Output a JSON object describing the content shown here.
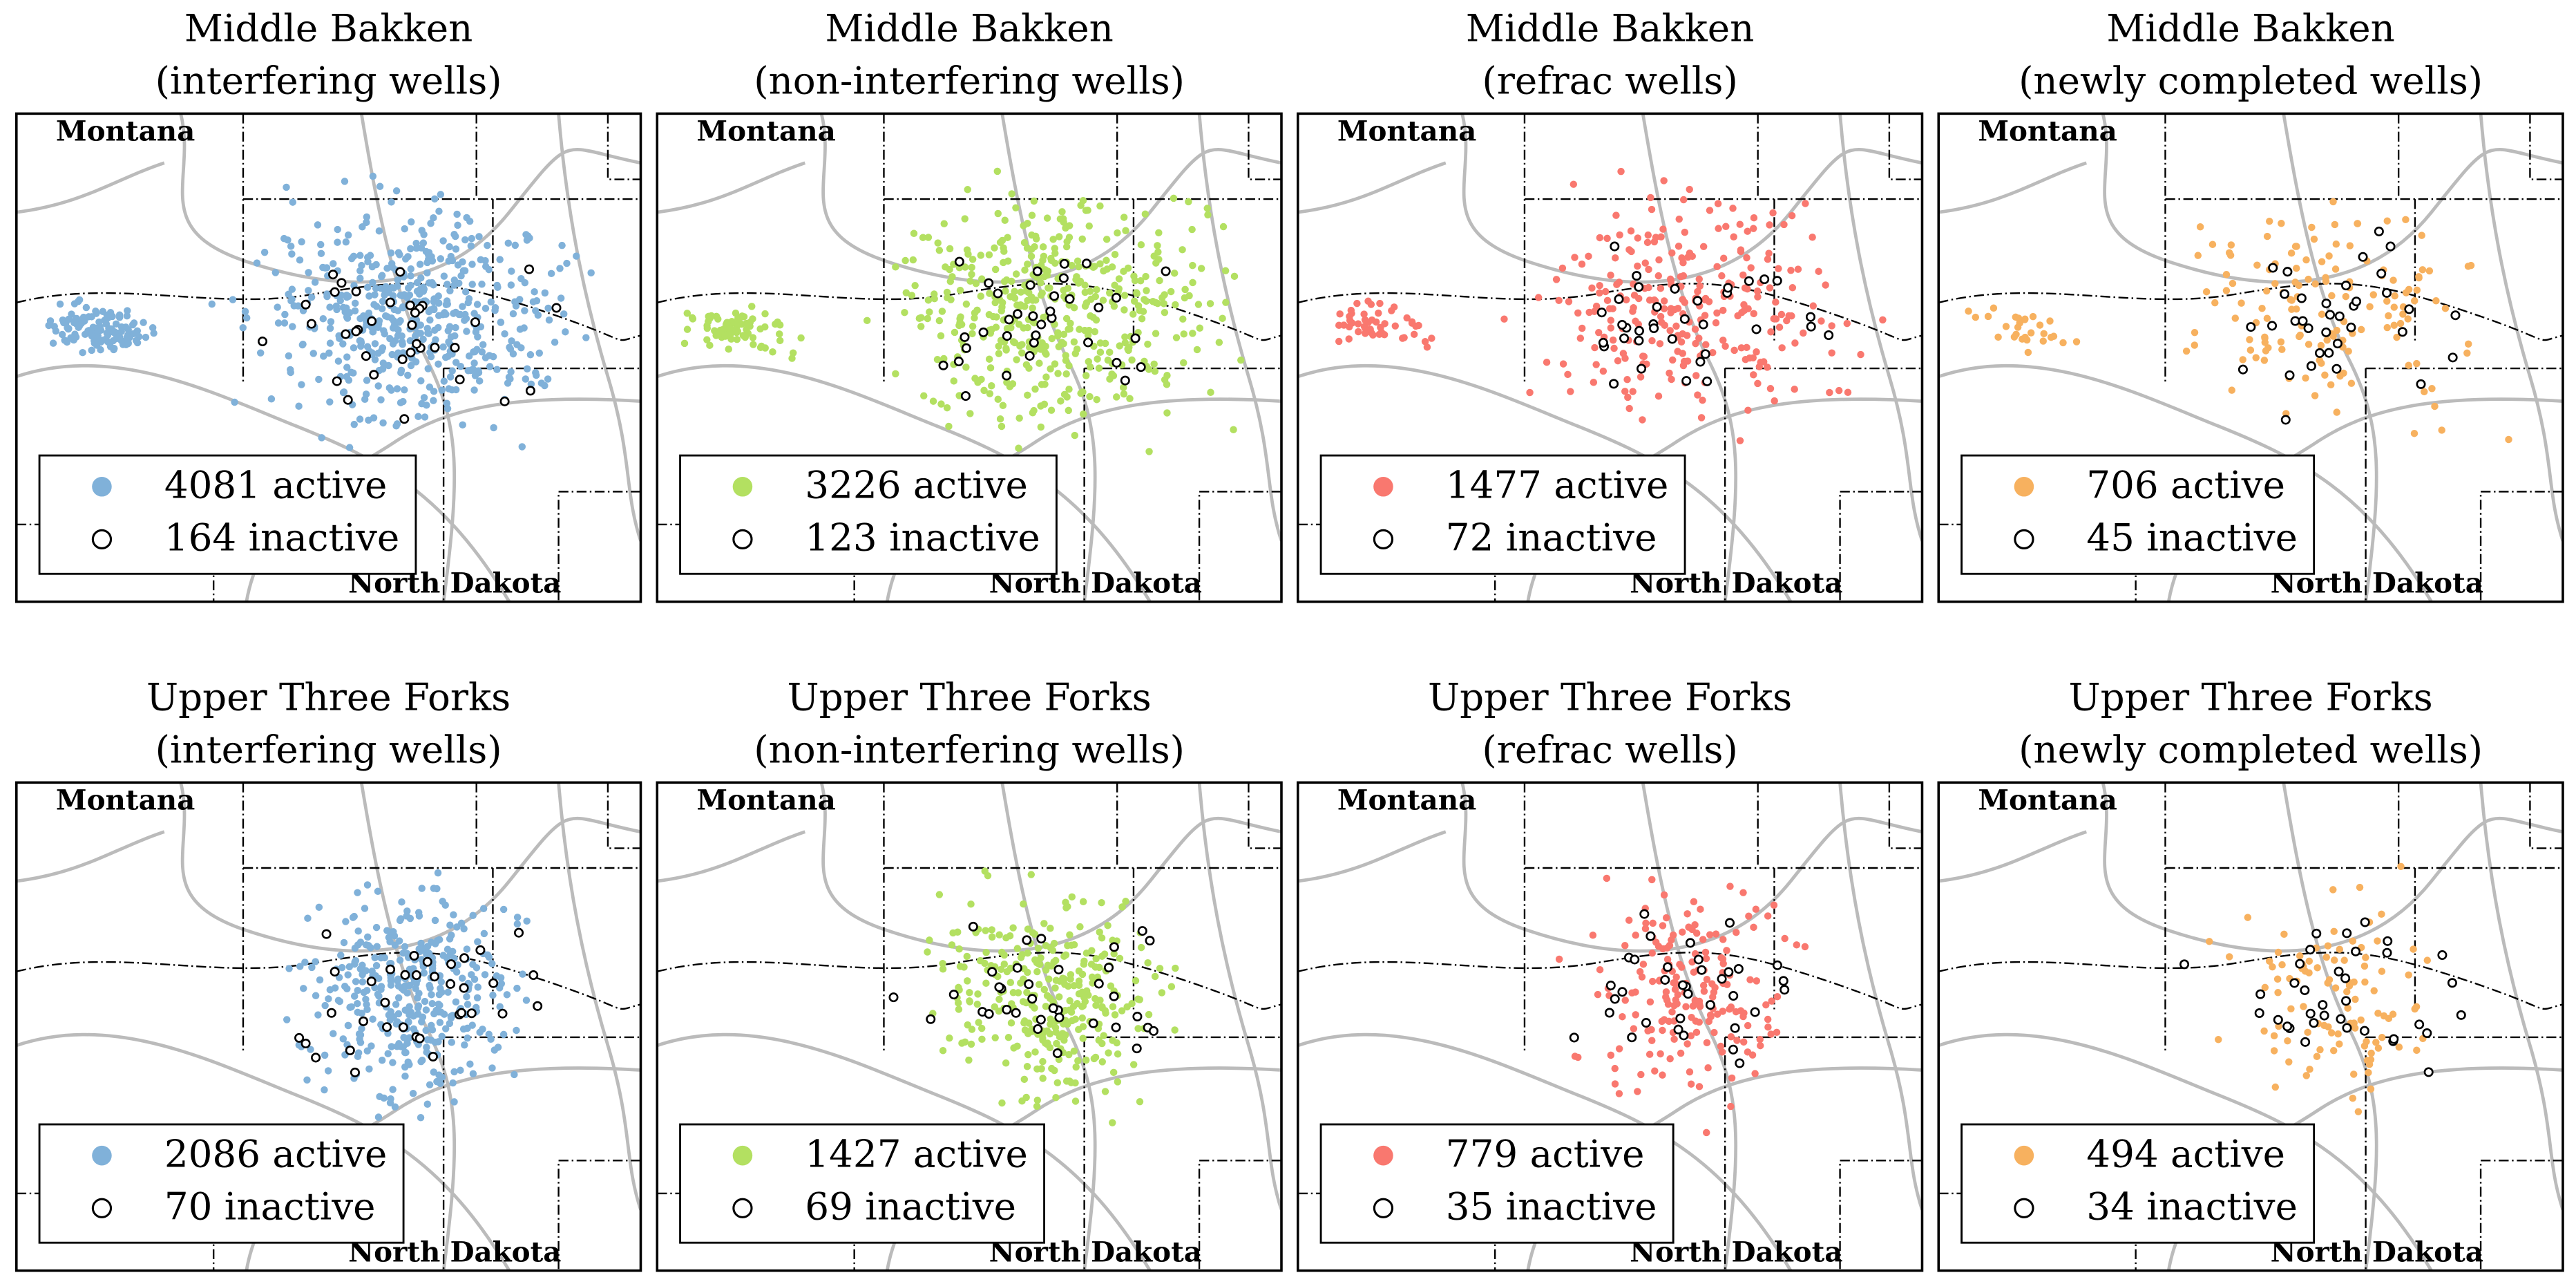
{
  "panels": [
    {
      "title": [
        "Middle Bakken",
        "(interfering wells)"
      ],
      "legend": [
        "4081 active",
        "164 inactive"
      ],
      "color": "#80b1d9"
    },
    {
      "title": [
        "Middle Bakken",
        "(non-interfering wells)"
      ],
      "legend": [
        "3226 active",
        "123 inactive"
      ],
      "color": "#b3e061"
    },
    {
      "title": [
        "Middle Bakken",
        "(refrac wells)"
      ],
      "legend": [
        "1477 active",
        "72 inactive"
      ],
      "color": "#f9786f"
    },
    {
      "title": [
        "Middle Bakken",
        "(newly completed wells)"
      ],
      "legend": [
        "706 active",
        "45 inactive"
      ],
      "color": "#f7b15f"
    },
    {
      "title": [
        "Upper Three Forks",
        "(interfering wells)"
      ],
      "legend": [
        "2086 active",
        "70 inactive"
      ],
      "color": "#80b1d9"
    },
    {
      "title": [
        "Upper Three Forks",
        "(non-interfering wells)"
      ],
      "legend": [
        "1427 active",
        "69 inactive"
      ],
      "color": "#b3e061"
    },
    {
      "title": [
        "Upper Three Forks",
        "(refrac wells)"
      ],
      "legend": [
        "779 active",
        "35 inactive"
      ],
      "color": "#f9786f"
    },
    {
      "title": [
        "Upper Three Forks",
        "(newly completed wells)"
      ],
      "legend": [
        "494 active",
        "34 inactive"
      ],
      "color": "#f7b15f"
    }
  ],
  "state_labels": [
    "Montana",
    "North Dakota"
  ]
}
